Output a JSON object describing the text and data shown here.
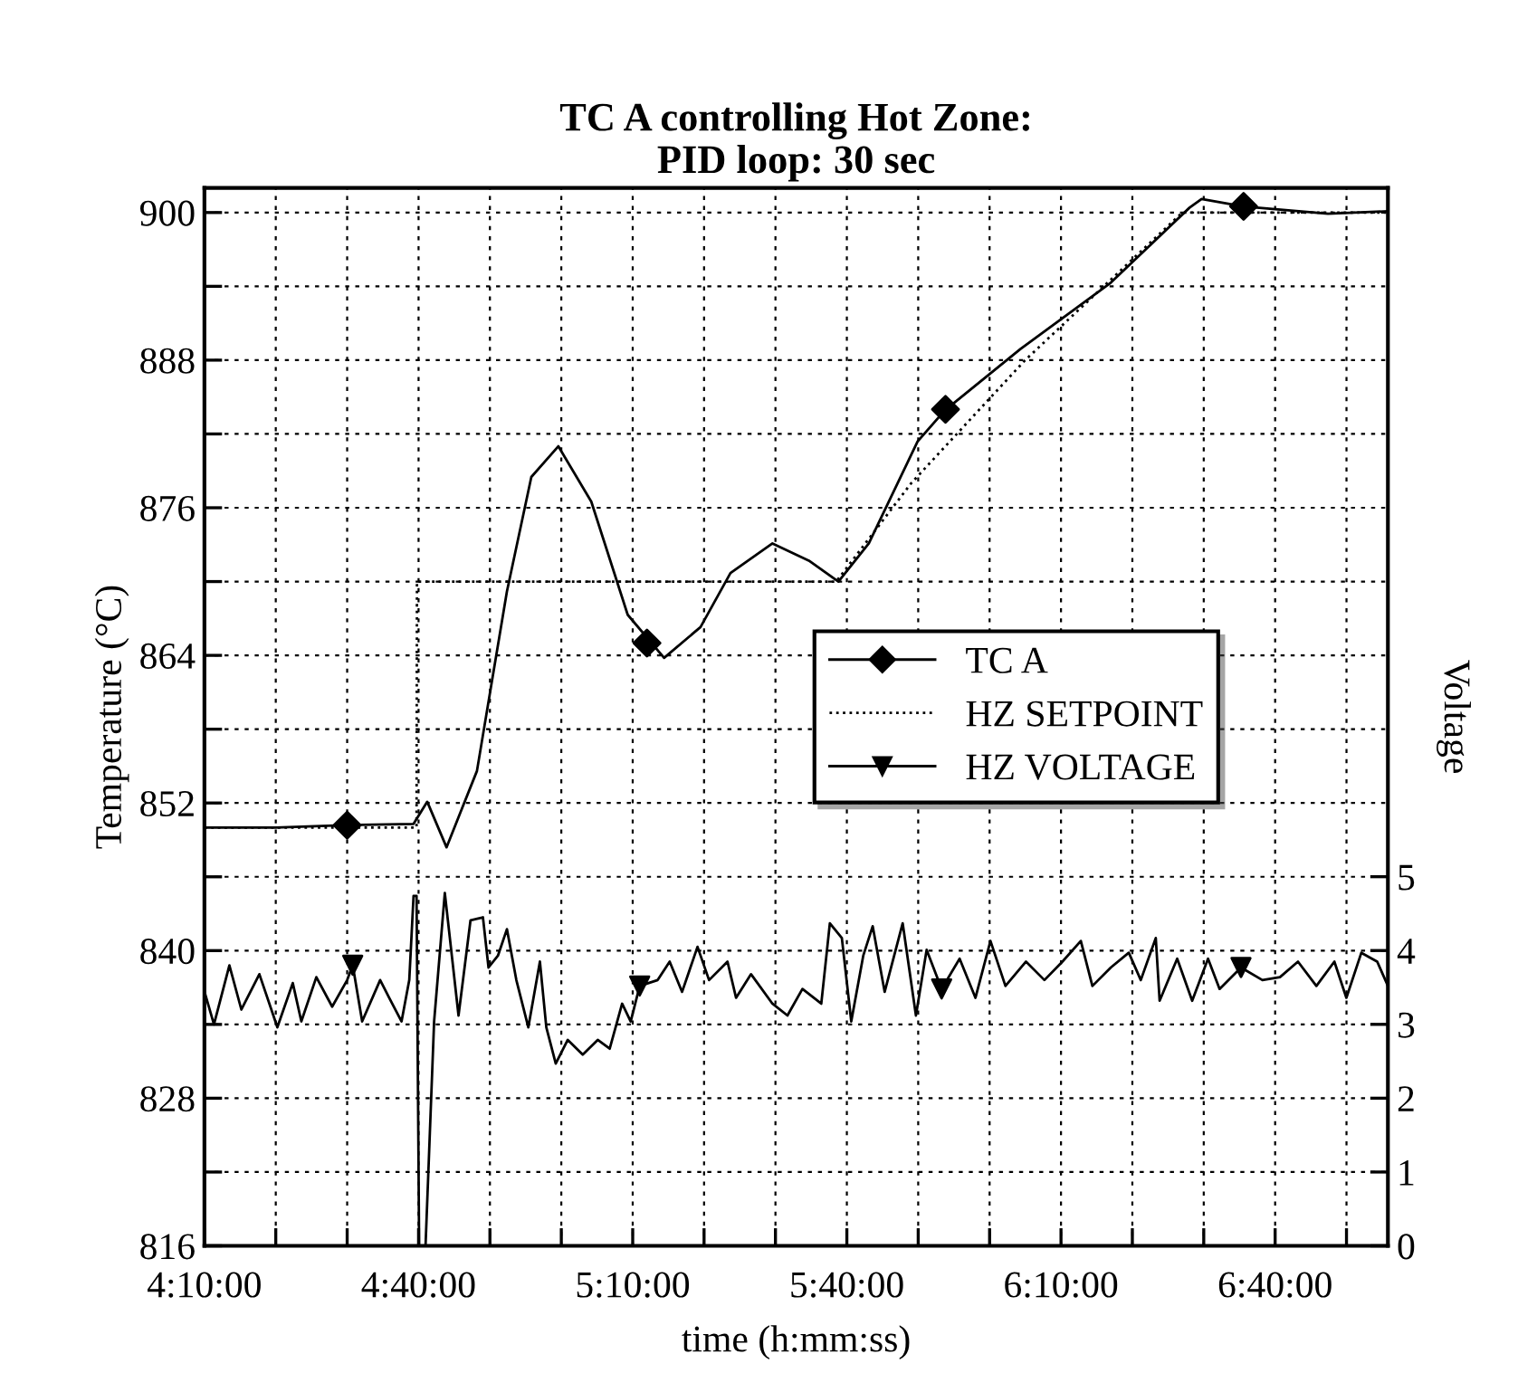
{
  "chart_data": {
    "type": "line",
    "title": "TC A controlling Hot Zone:\nPID loop: 30 sec",
    "xlabel": "time (h:mm:ss)",
    "ylabel": "Temperature (°C)",
    "y2label": "Voltage",
    "xlim": [
      4.1667,
      6.93
    ],
    "xticks": [
      {
        "value": 4.1667,
        "label": "4:10:00"
      },
      {
        "value": 4.3333,
        "label": null
      },
      {
        "value": 4.5,
        "label": null
      },
      {
        "value": 4.6667,
        "label": "4:40:00"
      },
      {
        "value": 4.8333,
        "label": null
      },
      {
        "value": 5.0,
        "label": null
      },
      {
        "value": 5.1667,
        "label": "5:10:00"
      },
      {
        "value": 5.3333,
        "label": null
      },
      {
        "value": 5.5,
        "label": null
      },
      {
        "value": 5.6667,
        "label": "5:40:00"
      },
      {
        "value": 5.8333,
        "label": null
      },
      {
        "value": 6.0,
        "label": null
      },
      {
        "value": 6.1667,
        "label": "6:10:00"
      },
      {
        "value": 6.3333,
        "label": null
      },
      {
        "value": 6.5,
        "label": null
      },
      {
        "value": 6.6667,
        "label": "6:40:00"
      },
      {
        "value": 6.8333,
        "label": null
      }
    ],
    "ylim": [
      816,
      902
    ],
    "yticks": [
      816,
      {
        "value": 822,
        "label": null
      },
      828,
      {
        "value": 834,
        "label": null
      },
      840,
      {
        "value": 846,
        "label": null
      },
      852,
      {
        "value": 858,
        "label": null
      },
      864,
      {
        "value": 870,
        "label": null
      },
      876,
      {
        "value": 882,
        "label": null
      },
      888,
      {
        "value": 894,
        "label": null
      },
      900
    ],
    "y2lim": [
      0,
      14.33
    ],
    "y2ticks": [
      0,
      1,
      2,
      3,
      4,
      5
    ],
    "grid": true,
    "legend": "right",
    "series": [
      {
        "name": "TC A",
        "color": "#000000",
        "line_style": "solid",
        "x": [
          4.167,
          4.333,
          4.5,
          4.655,
          4.687,
          4.732,
          4.803,
          4.873,
          4.93,
          4.993,
          5.07,
          5.155,
          5.24,
          5.325,
          5.395,
          5.493,
          5.578,
          5.647,
          5.718,
          5.832,
          5.895,
          6.072,
          6.283,
          6.467,
          6.495,
          6.593,
          6.79,
          6.928
        ],
        "values": [
          850.0,
          850.0,
          850.2,
          850.3,
          852.1,
          848.4,
          854.6,
          869.2,
          878.5,
          881.0,
          876.5,
          867.3,
          863.8,
          866.3,
          870.7,
          873.1,
          871.7,
          870.0,
          873.1,
          881.4,
          883.9,
          888.9,
          894.3,
          900.4,
          901.1,
          900.5,
          899.9,
          900.1
        ]
      },
      {
        "type": "scatter",
        "color": "#000000",
        "marker": "diamond",
        "x": [
          4.5,
          5.2,
          5.897,
          6.593
        ],
        "values": [
          850.2,
          865.0,
          884.0,
          900.5
        ]
      },
      {
        "name": "HZ SETPOINT",
        "color": "#000000",
        "line_style": "dotted",
        "x": [
          4.167,
          4.662,
          4.663,
          5.642,
          5.817,
          6.083,
          6.45,
          6.93
        ],
        "values": [
          850,
          850,
          870,
          870,
          878,
          888,
          900,
          900
        ]
      },
      {
        "name": "HZ VOLTAGE",
        "color": "#000000",
        "line_style": "solid",
        "axis": "y2",
        "x": [
          4.167,
          4.189,
          4.225,
          4.253,
          4.295,
          4.337,
          4.373,
          4.393,
          4.428,
          4.465,
          4.5,
          4.513,
          4.535,
          4.577,
          4.598,
          4.627,
          4.645,
          4.655,
          4.662,
          4.668,
          4.683,
          4.703,
          4.728,
          4.76,
          4.788,
          4.817,
          4.83,
          4.852,
          4.873,
          4.895,
          4.923,
          4.95,
          4.965,
          4.987,
          5.015,
          5.05,
          5.085,
          5.113,
          5.142,
          5.162,
          5.183,
          5.225,
          5.253,
          5.282,
          5.318,
          5.345,
          5.388,
          5.408,
          5.443,
          5.493,
          5.528,
          5.563,
          5.607,
          5.627,
          5.655,
          5.677,
          5.705,
          5.727,
          5.755,
          5.797,
          5.828,
          5.853,
          5.888,
          5.93,
          5.967,
          6.002,
          6.037,
          6.085,
          6.128,
          6.17,
          6.213,
          6.24,
          6.283,
          6.325,
          6.353,
          6.388,
          6.397,
          6.438,
          6.473,
          6.51,
          6.537,
          6.587,
          6.637,
          6.678,
          6.72,
          6.763,
          6.805,
          6.833,
          6.868,
          6.905,
          6.93
        ],
        "values": [
          3.44,
          3.0,
          3.8,
          3.2,
          3.68,
          2.96,
          3.56,
          3.04,
          3.64,
          3.24,
          3.6,
          3.8,
          3.04,
          3.6,
          3.36,
          3.04,
          3.6,
          4.74,
          4.74,
          0,
          0,
          3.04,
          4.78,
          3.12,
          4.41,
          4.45,
          3.77,
          3.93,
          4.29,
          3.6,
          2.96,
          3.85,
          2.96,
          2.47,
          2.79,
          2.59,
          2.79,
          2.67,
          3.28,
          3.04,
          3.52,
          3.6,
          3.85,
          3.44,
          4.05,
          3.6,
          3.85,
          3.36,
          3.68,
          3.28,
          3.12,
          3.48,
          3.28,
          4.37,
          4.17,
          3.04,
          3.93,
          4.33,
          3.44,
          4.37,
          3.12,
          4.01,
          3.48,
          3.89,
          3.36,
          4.13,
          3.52,
          3.85,
          3.6,
          3.85,
          4.13,
          3.52,
          3.77,
          3.97,
          3.6,
          4.17,
          3.32,
          3.89,
          3.32,
          3.89,
          3.48,
          3.77,
          3.6,
          3.64,
          3.85,
          3.52,
          3.85,
          3.36,
          3.97,
          3.85,
          3.52
        ]
      },
      {
        "type": "scatter",
        "color": "#000000",
        "marker": "triangle",
        "axis": "y2",
        "x": [
          4.513,
          5.183,
          5.888,
          6.587
        ],
        "values": [
          3.8,
          3.52,
          3.48,
          3.77
        ]
      }
    ]
  }
}
